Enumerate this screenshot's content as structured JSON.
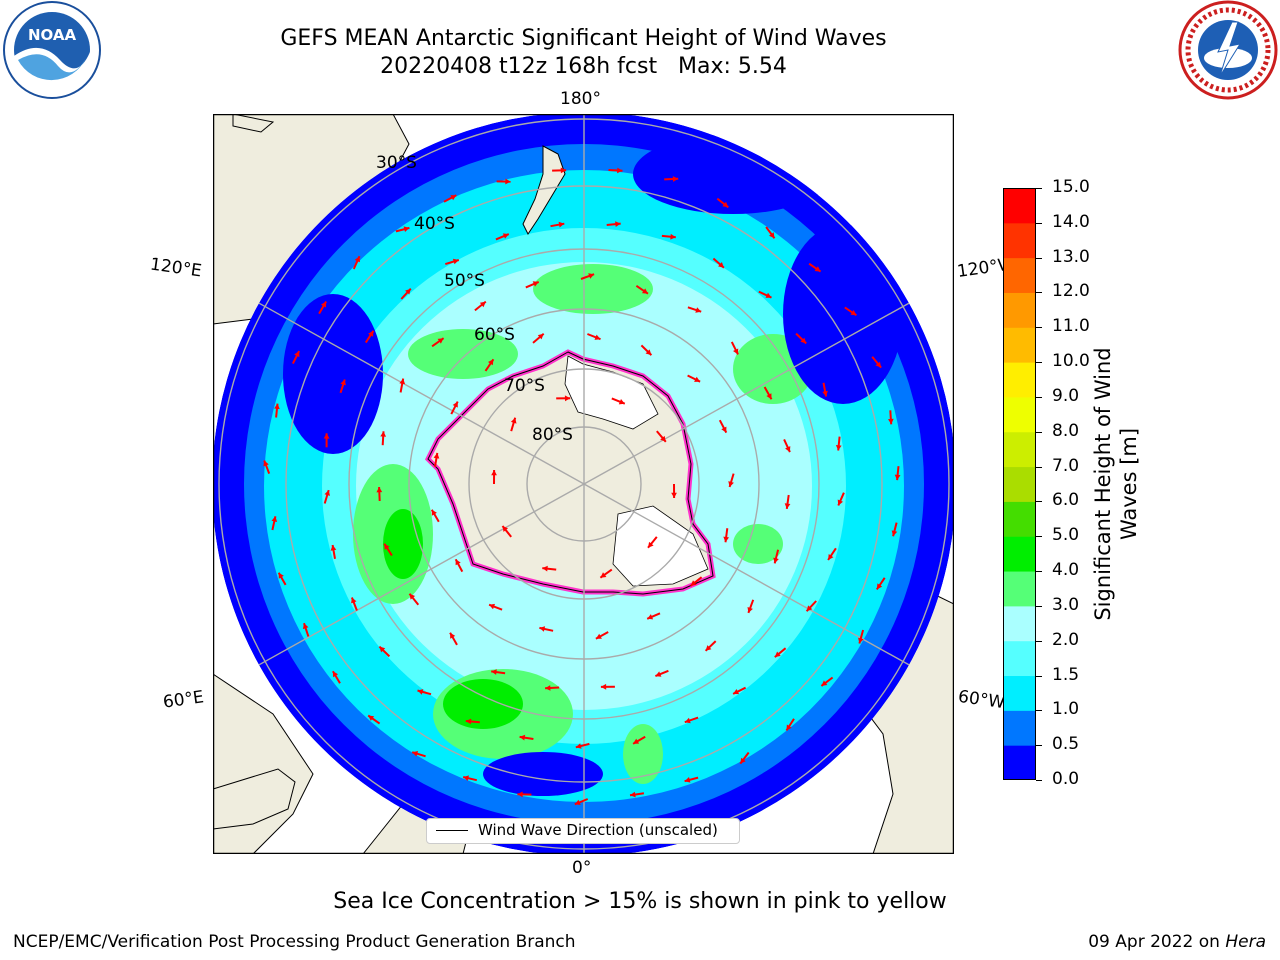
{
  "header": {
    "title_line1": "GEFS MEAN Antarctic Significant Height of Wind Waves",
    "title_line2": "20220408 t12z 168h fcst   Max: 5.54"
  },
  "logos": {
    "left": "noaa-logo",
    "right": "national-weather-service-logo"
  },
  "map": {
    "projection": "south-polar-stereographic",
    "longitude_labels": [
      "180°",
      "120°E",
      "120°W",
      "60°E",
      "60°W",
      "0°"
    ],
    "latitude_labels": [
      "30°S",
      "40°S",
      "50°S",
      "60°S",
      "70°S",
      "80°S"
    ],
    "legend": {
      "line_label": "Wind Wave Direction (unscaled)",
      "line_color": "#000000"
    },
    "arrow_color": "#ff0000",
    "land_color": "#efedde",
    "ice_shelf_color": "#ffffff"
  },
  "colorbar": {
    "label_line1": "Significant Height of Wind",
    "label_line2": "Waves [m]",
    "ticks": [
      "0.0",
      "0.5",
      "1.0",
      "1.5",
      "2.0",
      "3.0",
      "4.0",
      "5.0",
      "6.0",
      "7.0",
      "8.0",
      "9.0",
      "10.0",
      "11.0",
      "12.0",
      "13.0",
      "14.0",
      "15.0"
    ],
    "colors": [
      "#0000ff",
      "#0077ff",
      "#00eeff",
      "#55ffff",
      "#aaffff",
      "#55ff77",
      "#00ee00",
      "#44dd00",
      "#aadd00",
      "#ccee00",
      "#eeff00",
      "#ffee00",
      "#ffbb00",
      "#ff9900",
      "#ff6600",
      "#ff3300",
      "#ff0000"
    ]
  },
  "footer": {
    "note": "Sea Ice Concentration > 15% is shown in pink to yellow",
    "left": "NCEP/EMC/Verification Post Processing Product Generation Branch",
    "right_prefix": "09 Apr 2022 on ",
    "right_machine": "Hera"
  }
}
